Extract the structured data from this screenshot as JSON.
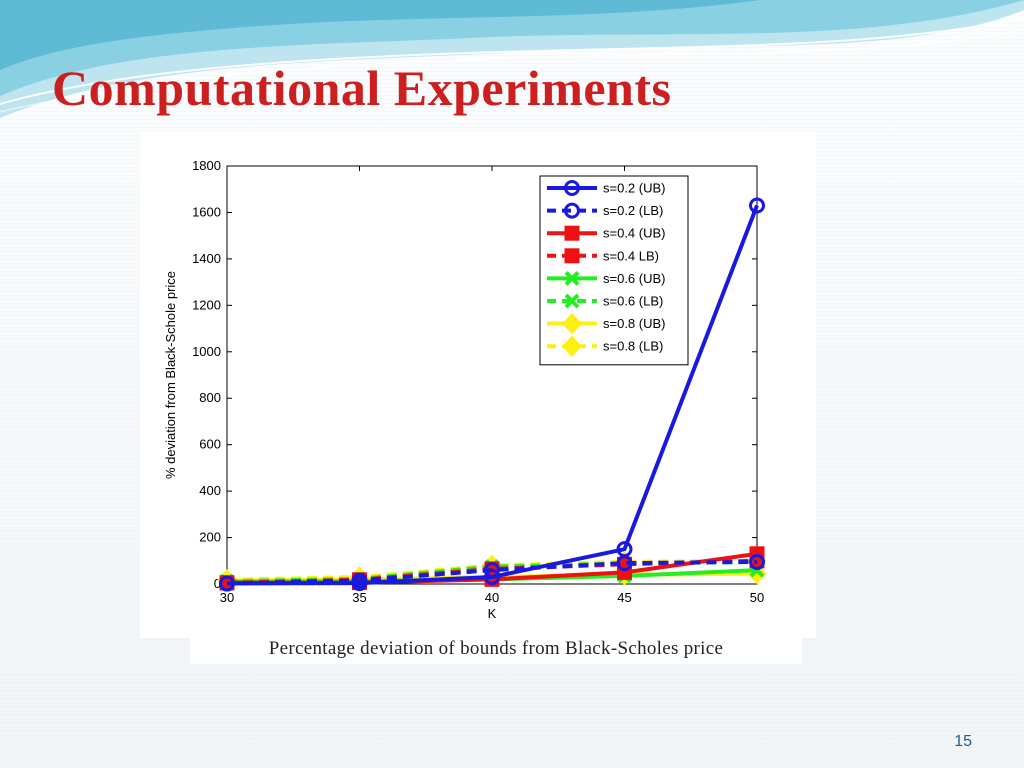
{
  "slide": {
    "title": "Computational Experiments",
    "caption": "Percentage deviation of bounds from Black-Scholes price",
    "page_number": "15"
  },
  "colors": {
    "title": "#cc1f1f",
    "blue": "#1a1adf",
    "red": "#ee1111",
    "green": "#22ee22",
    "yellow": "#ffee11"
  },
  "chart_data": {
    "type": "line",
    "xlabel": "K",
    "ylabel": "% deviation from Black-Schole price",
    "x": [
      30,
      35,
      40,
      45,
      50
    ],
    "xticks": [
      "30",
      "35",
      "40",
      "45",
      "50"
    ],
    "xlim": [
      30,
      50
    ],
    "ylim": [
      0,
      1800
    ],
    "yticks": [
      "0",
      "200",
      "400",
      "600",
      "800",
      "1000",
      "1200",
      "1400",
      "1600",
      "1800"
    ],
    "grid": false,
    "legend_position": "top-right",
    "series": [
      {
        "name": "s=0.2 (UB)",
        "color": "#1a1adf",
        "dash": "solid",
        "marker": "circle",
        "values": [
          2,
          4,
          30,
          150,
          1630
        ]
      },
      {
        "name": "s=0.2 (LB)",
        "color": "#1a1adf",
        "dash": "dashed",
        "marker": "circle",
        "values": [
          2,
          15,
          60,
          90,
          95
        ]
      },
      {
        "name": "s=0.4 (UB)",
        "color": "#ee1111",
        "dash": "solid",
        "marker": "square",
        "values": [
          5,
          6,
          20,
          50,
          130
        ]
      },
      {
        "name": "s=0.4 LB)",
        "color": "#ee1111",
        "dash": "dashed",
        "marker": "square",
        "values": [
          5,
          18,
          65,
          85,
          100
        ]
      },
      {
        "name": "s=0.6 (UB)",
        "color": "#22ee22",
        "dash": "solid",
        "marker": "x",
        "values": [
          10,
          12,
          20,
          35,
          60
        ]
      },
      {
        "name": "s=0.6 (LB)",
        "color": "#22ee22",
        "dash": "dashed",
        "marker": "x",
        "values": [
          12,
          22,
          75,
          88,
          95
        ]
      },
      {
        "name": "s=0.8 (UB)",
        "color": "#ffee11",
        "dash": "solid",
        "marker": "diamond",
        "values": [
          15,
          20,
          30,
          40,
          45
        ]
      },
      {
        "name": "s=0.8 (LB)",
        "color": "#ffee11",
        "dash": "dashed",
        "marker": "diamond",
        "values": [
          18,
          30,
          80,
          95,
          100
        ]
      }
    ]
  }
}
